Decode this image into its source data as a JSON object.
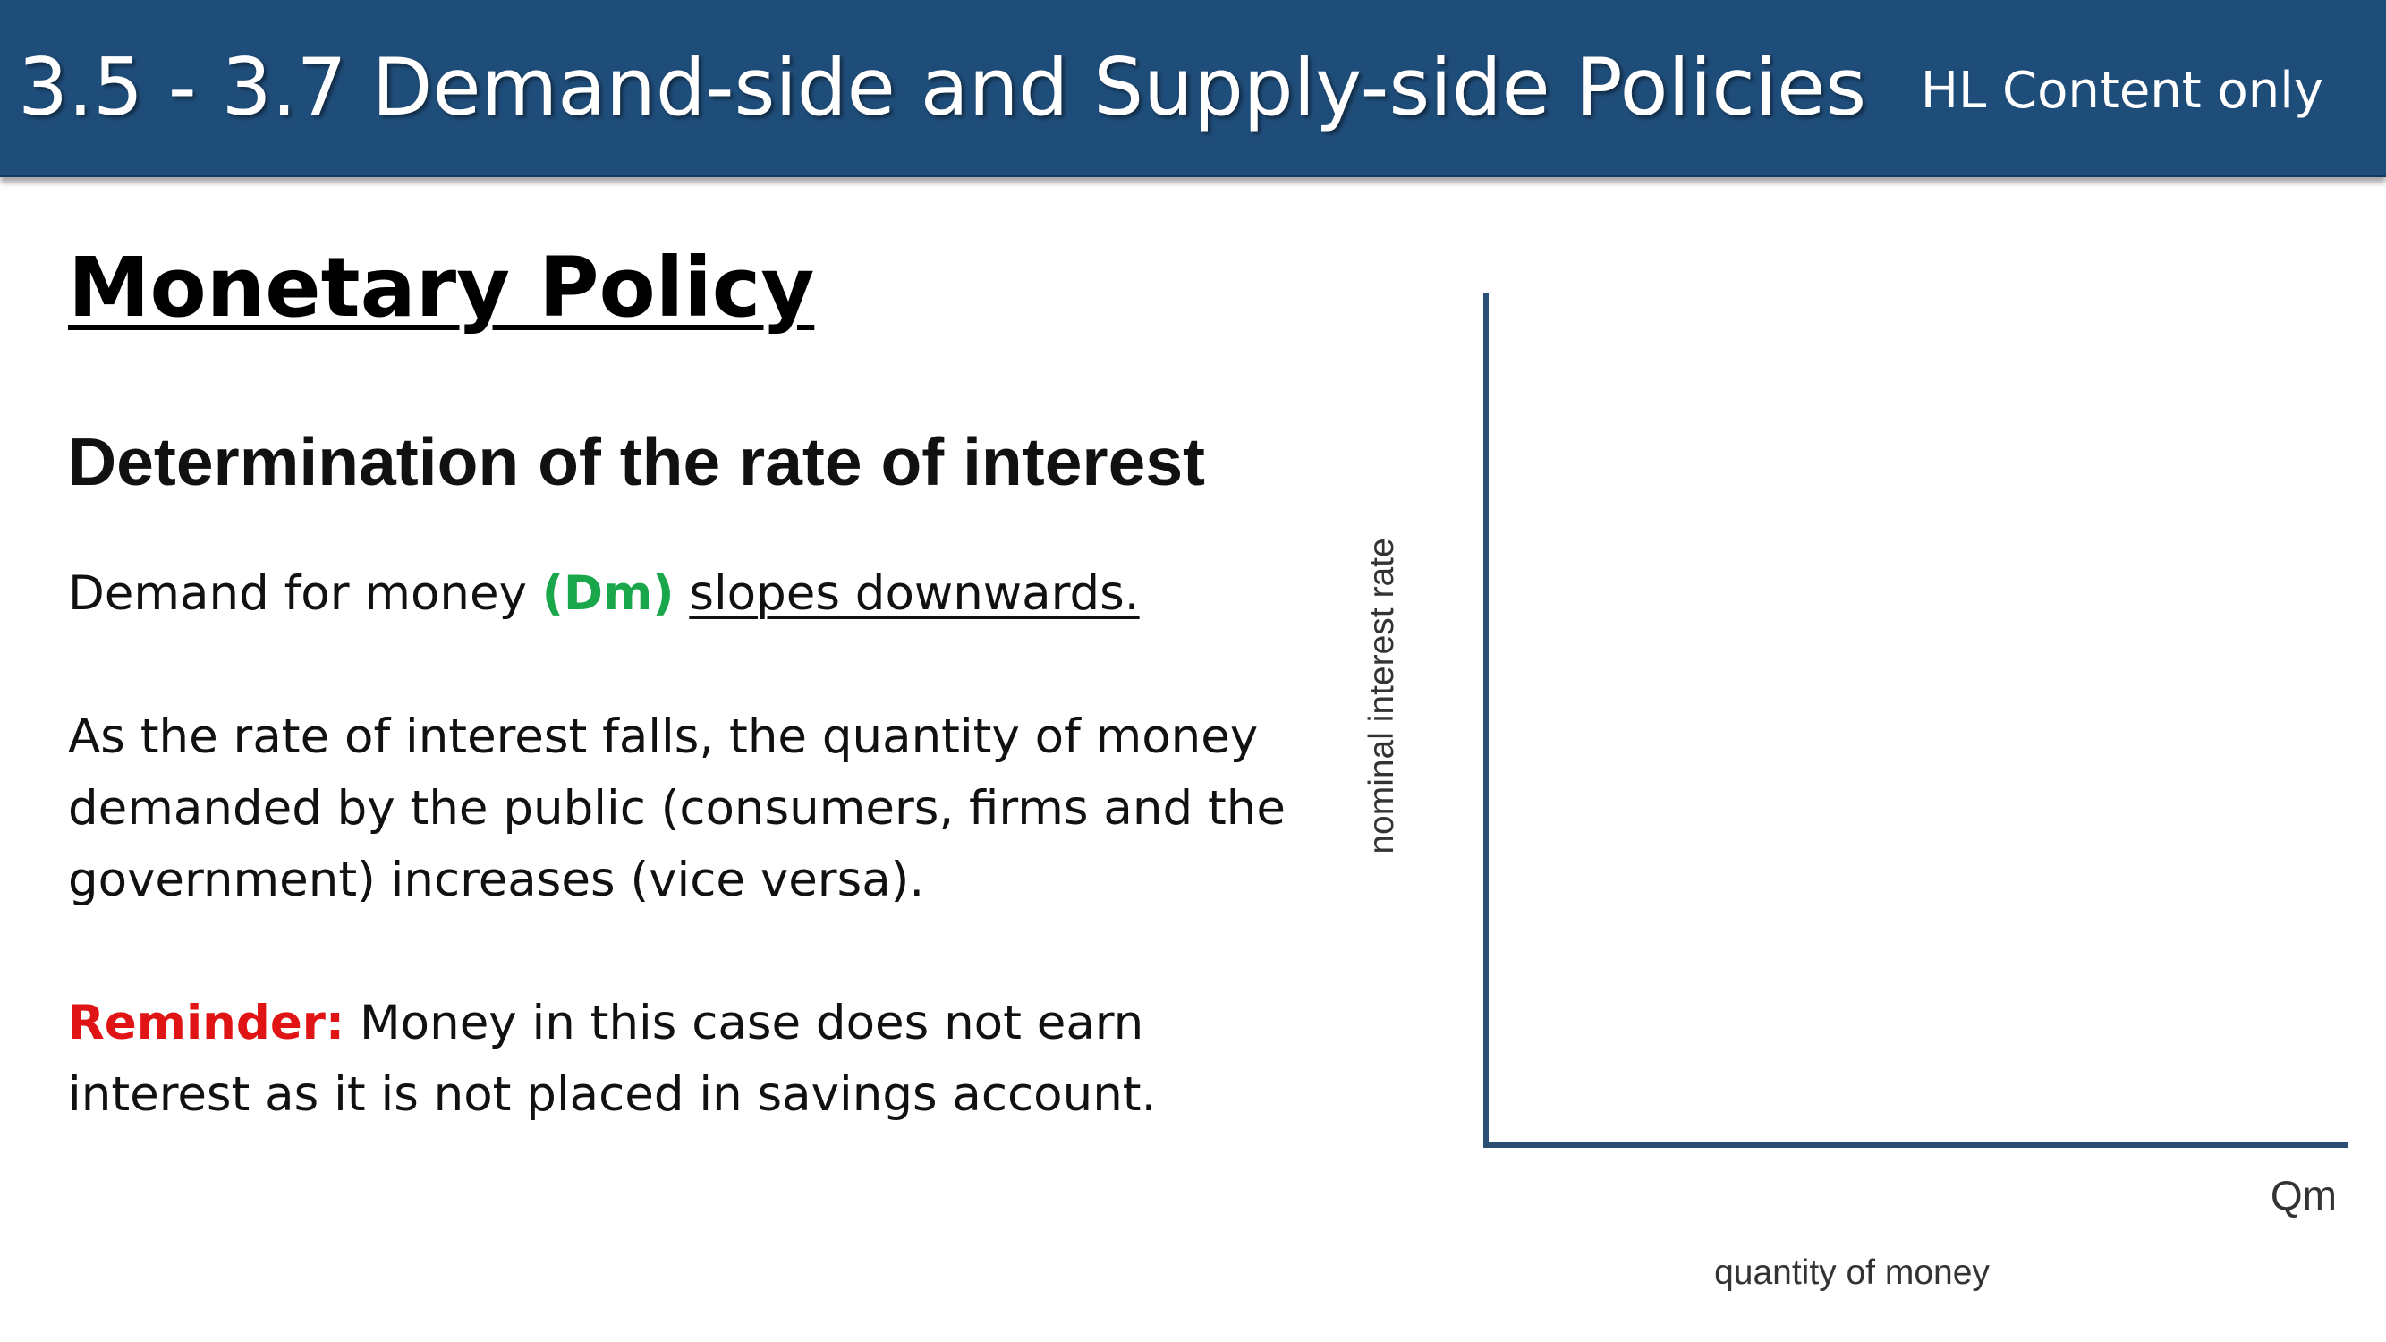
{
  "header": {
    "title": "3.5 - 3.7 Demand-side and Supply-side Policies",
    "tag": "HL Content only"
  },
  "slide": {
    "section_title": "Monetary Policy",
    "subheading": "Determination of the rate of interest",
    "p1": {
      "prefix": "Demand for money ",
      "highlight": "(Dm)",
      "underlined": "slopes downwards."
    },
    "p2": "As the rate of interest falls, the quantity of money demanded by the public (consumers, firms and the government) increases (vice versa).",
    "p3": {
      "label": "Reminder:",
      "text": " Money in this case does not earn interest as it is not placed in savings account."
    }
  },
  "graph": {
    "y_axis_label": "nominal interest rate",
    "x_axis_end_label": "Qm",
    "x_axis_label": "quantity of money",
    "axis_color": "#2b4f74"
  }
}
